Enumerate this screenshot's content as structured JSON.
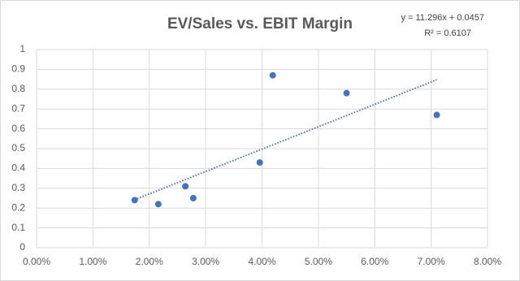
{
  "chart_data": {
    "type": "scatter",
    "title": "EV/Sales vs. EBIT Margin",
    "series": [
      {
        "color": "#4472c4",
        "x": [
          0.0174,
          0.0216,
          0.0264,
          0.0278,
          0.0396,
          0.0419,
          0.055,
          0.071
        ],
        "values": [
          0.24,
          0.22,
          0.31,
          0.25,
          0.43,
          0.87,
          0.78,
          0.67
        ]
      }
    ],
    "trendline": {
      "equation": "y = 11.296x + 0.0457",
      "r_squared": "R² = 0.6107",
      "slope": 11.296,
      "intercept": 0.0457,
      "color": "#4472c4"
    },
    "xlim": [
      0,
      0.08
    ],
    "xticks": [
      {
        "value": 0,
        "label": "0.00%"
      },
      {
        "value": 0.01,
        "label": "1.00%"
      },
      {
        "value": 0.02,
        "label": "2.00%"
      },
      {
        "value": 0.03,
        "label": "3.00%"
      },
      {
        "value": 0.04,
        "label": "4.00%"
      },
      {
        "value": 0.05,
        "label": "5.00%"
      },
      {
        "value": 0.06,
        "label": "6.00%"
      },
      {
        "value": 0.07,
        "label": "7.00%"
      },
      {
        "value": 0.08,
        "label": "8.00%"
      }
    ],
    "ylim": [
      0,
      1
    ],
    "yticks": [
      0,
      0.1,
      0.2,
      0.3,
      0.4,
      0.5,
      0.6,
      0.7,
      0.8,
      0.9,
      1
    ],
    "grid": true
  }
}
